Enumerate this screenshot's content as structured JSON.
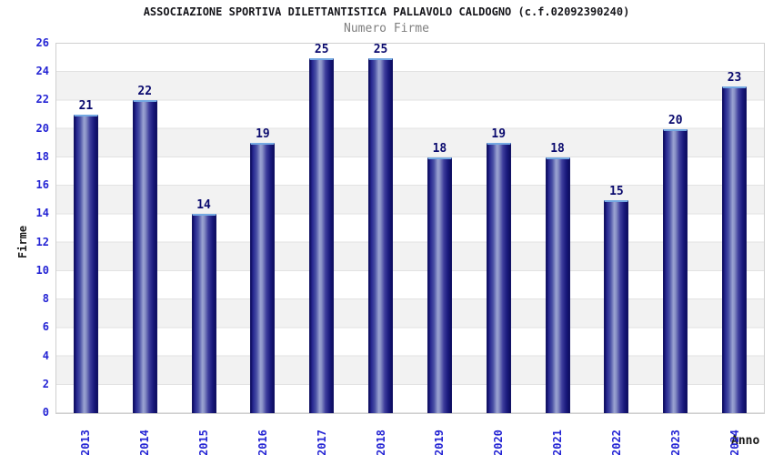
{
  "header": {
    "title": "ASSOCIAZIONE SPORTIVA DILETTANTISTICA PALLAVOLO CALDOGNO (c.f.02092390240)",
    "subtitle": "Numero Firme"
  },
  "chart_data": {
    "type": "bar",
    "title": "ASSOCIAZIONE SPORTIVA DILETTANTISTICA PALLAVOLO CALDOGNO (c.f.02092390240)",
    "subtitle": "Numero Firme",
    "xlabel": "Anno",
    "ylabel": "Firme",
    "categories": [
      "2013",
      "2014",
      "2015",
      "2016",
      "2017",
      "2018",
      "2019",
      "2020",
      "2021",
      "2022",
      "2023",
      "2024"
    ],
    "values": [
      21,
      22,
      14,
      19,
      25,
      25,
      18,
      19,
      18,
      15,
      20,
      23
    ],
    "ylim": [
      0,
      26
    ],
    "y_ticks": [
      0,
      2,
      4,
      6,
      8,
      10,
      12,
      14,
      16,
      18,
      20,
      22,
      24,
      26
    ],
    "grid": "horizontal-bands",
    "legend": "none",
    "colors": {
      "bar_edge": "#141466",
      "bar_center": "#9ba3d2",
      "bar_top_highlight": "#74a8e2",
      "tick_label": "#2424d4",
      "value_label": "#0a0a6e",
      "band_gray": "#f2f2f2",
      "gridline": "#e2e2e2",
      "plot_border": "#cfcfcf",
      "title": "#15151a",
      "subtitle": "#7f7f7f"
    }
  }
}
